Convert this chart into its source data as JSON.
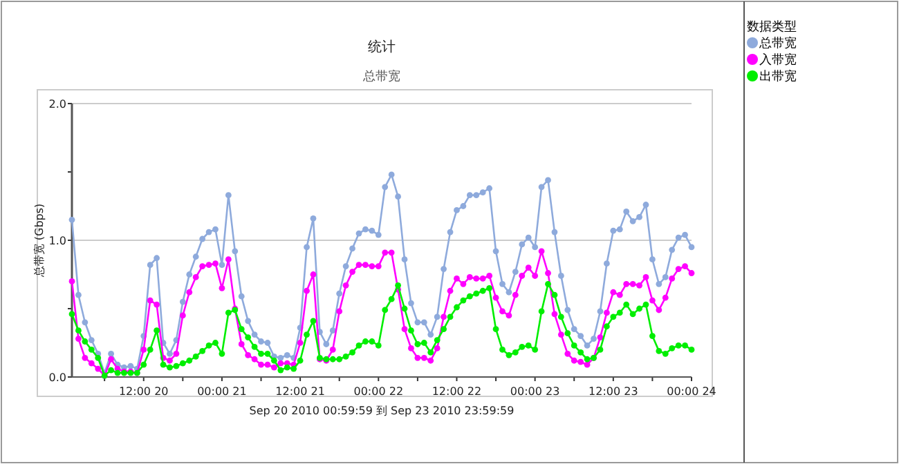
{
  "chart_data": {
    "type": "line",
    "title": "统计",
    "subtitle": "总带宽",
    "ylabel": "总带宽 (Gbps)",
    "legend_title": "数据类型",
    "legend": "right",
    "grid": "y",
    "marker": "circle",
    "line_style": "solid",
    "annotations": [
      "Sep 20 2010  00:59:59 到 Sep 23 2010  23:59:59"
    ],
    "xlim": [
      "2010-09-20T01:00",
      "2010-09-24T00:00"
    ],
    "xticks": [
      {
        "value": "2010-09-20T06:00",
        "label": null
      },
      {
        "value": "2010-09-20T12:00",
        "label": "12:00 20"
      },
      {
        "value": "2010-09-20T18:00",
        "label": null
      },
      {
        "value": "2010-09-21T00:00",
        "label": "00:00 21"
      },
      {
        "value": "2010-09-21T06:00",
        "label": null
      },
      {
        "value": "2010-09-21T12:00",
        "label": "12:00 21"
      },
      {
        "value": "2010-09-21T18:00",
        "label": null
      },
      {
        "value": "2010-09-22T00:00",
        "label": "00:00 22"
      },
      {
        "value": "2010-09-22T06:00",
        "label": null
      },
      {
        "value": "2010-09-22T12:00",
        "label": "12:00 22"
      },
      {
        "value": "2010-09-22T18:00",
        "label": null
      },
      {
        "value": "2010-09-23T00:00",
        "label": "00:00 23"
      },
      {
        "value": "2010-09-23T06:00",
        "label": null
      },
      {
        "value": "2010-09-23T12:00",
        "label": "12:00 23"
      },
      {
        "value": "2010-09-23T18:00",
        "label": null
      },
      {
        "value": "2010-09-24T00:00",
        "label": "00:00 24"
      }
    ],
    "ylim": [
      0,
      2
    ],
    "yticks": [
      {
        "value": 0,
        "label": "0.0"
      },
      {
        "value": 0.5,
        "label": null
      },
      {
        "value": 1,
        "label": "1.0"
      },
      {
        "value": 1.5,
        "label": null
      },
      {
        "value": 2,
        "label": "2.0"
      }
    ],
    "x": [
      "2010-09-20T01:00",
      "2010-09-20T02:00",
      "2010-09-20T03:00",
      "2010-09-20T04:00",
      "2010-09-20T05:00",
      "2010-09-20T06:00",
      "2010-09-20T07:00",
      "2010-09-20T08:00",
      "2010-09-20T09:00",
      "2010-09-20T10:00",
      "2010-09-20T11:00",
      "2010-09-20T12:00",
      "2010-09-20T13:00",
      "2010-09-20T14:00",
      "2010-09-20T15:00",
      "2010-09-20T16:00",
      "2010-09-20T17:00",
      "2010-09-20T18:00",
      "2010-09-20T19:00",
      "2010-09-20T20:00",
      "2010-09-20T21:00",
      "2010-09-20T22:00",
      "2010-09-20T23:00",
      "2010-09-21T00:00",
      "2010-09-21T01:00",
      "2010-09-21T02:00",
      "2010-09-21T03:00",
      "2010-09-21T04:00",
      "2010-09-21T05:00",
      "2010-09-21T06:00",
      "2010-09-21T07:00",
      "2010-09-21T08:00",
      "2010-09-21T09:00",
      "2010-09-21T10:00",
      "2010-09-21T11:00",
      "2010-09-21T12:00",
      "2010-09-21T13:00",
      "2010-09-21T14:00",
      "2010-09-21T15:00",
      "2010-09-21T16:00",
      "2010-09-21T17:00",
      "2010-09-21T18:00",
      "2010-09-21T19:00",
      "2010-09-21T20:00",
      "2010-09-21T21:00",
      "2010-09-21T22:00",
      "2010-09-21T23:00",
      "2010-09-22T00:00",
      "2010-09-22T01:00",
      "2010-09-22T02:00",
      "2010-09-22T03:00",
      "2010-09-22T04:00",
      "2010-09-22T05:00",
      "2010-09-22T06:00",
      "2010-09-22T07:00",
      "2010-09-22T08:00",
      "2010-09-22T09:00",
      "2010-09-22T10:00",
      "2010-09-22T11:00",
      "2010-09-22T12:00",
      "2010-09-22T13:00",
      "2010-09-22T14:00",
      "2010-09-22T15:00",
      "2010-09-22T16:00",
      "2010-09-22T17:00",
      "2010-09-22T18:00",
      "2010-09-22T19:00",
      "2010-09-22T20:00",
      "2010-09-22T21:00",
      "2010-09-22T22:00",
      "2010-09-22T23:00",
      "2010-09-23T00:00",
      "2010-09-23T01:00",
      "2010-09-23T02:00",
      "2010-09-23T03:00",
      "2010-09-23T04:00",
      "2010-09-23T05:00",
      "2010-09-23T06:00",
      "2010-09-23T07:00",
      "2010-09-23T08:00",
      "2010-09-23T09:00",
      "2010-09-23T10:00",
      "2010-09-23T11:00",
      "2010-09-23T12:00",
      "2010-09-23T13:00",
      "2010-09-23T14:00",
      "2010-09-23T15:00",
      "2010-09-23T16:00",
      "2010-09-23T17:00",
      "2010-09-23T18:00",
      "2010-09-23T19:00",
      "2010-09-23T20:00",
      "2010-09-23T21:00",
      "2010-09-23T22:00",
      "2010-09-23T23:00",
      "2010-09-24T00:00"
    ],
    "series": [
      {
        "name": "总带宽",
        "color": "#8eaadc",
        "values": [
          1.15,
          0.6,
          0.4,
          0.27,
          0.17,
          0.03,
          0.17,
          0.09,
          0.07,
          0.08,
          0.06,
          0.3,
          0.82,
          0.87,
          0.25,
          0.17,
          0.27,
          0.55,
          0.75,
          0.88,
          1.01,
          1.06,
          1.08,
          0.82,
          1.33,
          0.92,
          0.59,
          0.41,
          0.31,
          0.26,
          0.25,
          0.15,
          0.14,
          0.16,
          0.14,
          0.36,
          0.95,
          1.16,
          0.33,
          0.24,
          0.34,
          0.61,
          0.81,
          0.94,
          1.05,
          1.08,
          1.07,
          1.04,
          1.39,
          1.48,
          1.32,
          0.86,
          0.54,
          0.4,
          0.4,
          0.31,
          0.44,
          0.79,
          1.06,
          1.22,
          1.25,
          1.33,
          1.33,
          1.35,
          1.38,
          0.92,
          0.68,
          0.62,
          0.77,
          0.97,
          1.02,
          0.95,
          1.39,
          1.44,
          1.06,
          0.74,
          0.49,
          0.35,
          0.3,
          0.23,
          0.28,
          0.48,
          0.83,
          1.07,
          1.08,
          1.21,
          1.14,
          1.17,
          1.26,
          0.86,
          0.68,
          0.73,
          0.93,
          1.02,
          1.04,
          0.95
        ]
      },
      {
        "name": "入带宽",
        "color": "#ff00ff",
        "values": [
          0.7,
          0.28,
          0.14,
          0.1,
          0.06,
          0.01,
          0.13,
          0.06,
          0.04,
          0.04,
          0.03,
          0.2,
          0.56,
          0.53,
          0.14,
          0.12,
          0.17,
          0.45,
          0.62,
          0.73,
          0.81,
          0.82,
          0.83,
          0.65,
          0.86,
          0.5,
          0.24,
          0.16,
          0.13,
          0.09,
          0.09,
          0.07,
          0.1,
          0.1,
          0.09,
          0.25,
          0.63,
          0.75,
          0.13,
          0.12,
          0.2,
          0.48,
          0.67,
          0.77,
          0.82,
          0.82,
          0.81,
          0.81,
          0.91,
          0.91,
          0.64,
          0.35,
          0.21,
          0.14,
          0.14,
          0.12,
          0.21,
          0.44,
          0.63,
          0.72,
          0.68,
          0.73,
          0.72,
          0.72,
          0.74,
          0.58,
          0.48,
          0.45,
          0.6,
          0.74,
          0.8,
          0.74,
          0.92,
          0.76,
          0.46,
          0.31,
          0.17,
          0.12,
          0.11,
          0.09,
          0.14,
          0.29,
          0.47,
          0.62,
          0.6,
          0.68,
          0.68,
          0.67,
          0.73,
          0.56,
          0.49,
          0.58,
          0.72,
          0.79,
          0.81,
          0.76
        ]
      },
      {
        "name": "出带宽",
        "color": "#00ee00",
        "values": [
          0.46,
          0.34,
          0.26,
          0.2,
          0.14,
          0.01,
          0.05,
          0.03,
          0.03,
          0.03,
          0.03,
          0.09,
          0.2,
          0.34,
          0.09,
          0.07,
          0.08,
          0.1,
          0.12,
          0.15,
          0.19,
          0.23,
          0.25,
          0.17,
          0.47,
          0.49,
          0.35,
          0.29,
          0.22,
          0.17,
          0.17,
          0.12,
          0.05,
          0.07,
          0.06,
          0.12,
          0.31,
          0.41,
          0.14,
          0.13,
          0.13,
          0.13,
          0.15,
          0.18,
          0.23,
          0.26,
          0.26,
          0.23,
          0.49,
          0.57,
          0.67,
          0.5,
          0.34,
          0.24,
          0.25,
          0.18,
          0.27,
          0.35,
          0.44,
          0.51,
          0.56,
          0.59,
          0.61,
          0.63,
          0.65,
          0.35,
          0.2,
          0.16,
          0.18,
          0.22,
          0.23,
          0.2,
          0.48,
          0.68,
          0.6,
          0.44,
          0.32,
          0.23,
          0.18,
          0.13,
          0.14,
          0.2,
          0.37,
          0.44,
          0.47,
          0.53,
          0.46,
          0.5,
          0.53,
          0.3,
          0.19,
          0.17,
          0.21,
          0.23,
          0.23,
          0.2
        ]
      }
    ]
  }
}
